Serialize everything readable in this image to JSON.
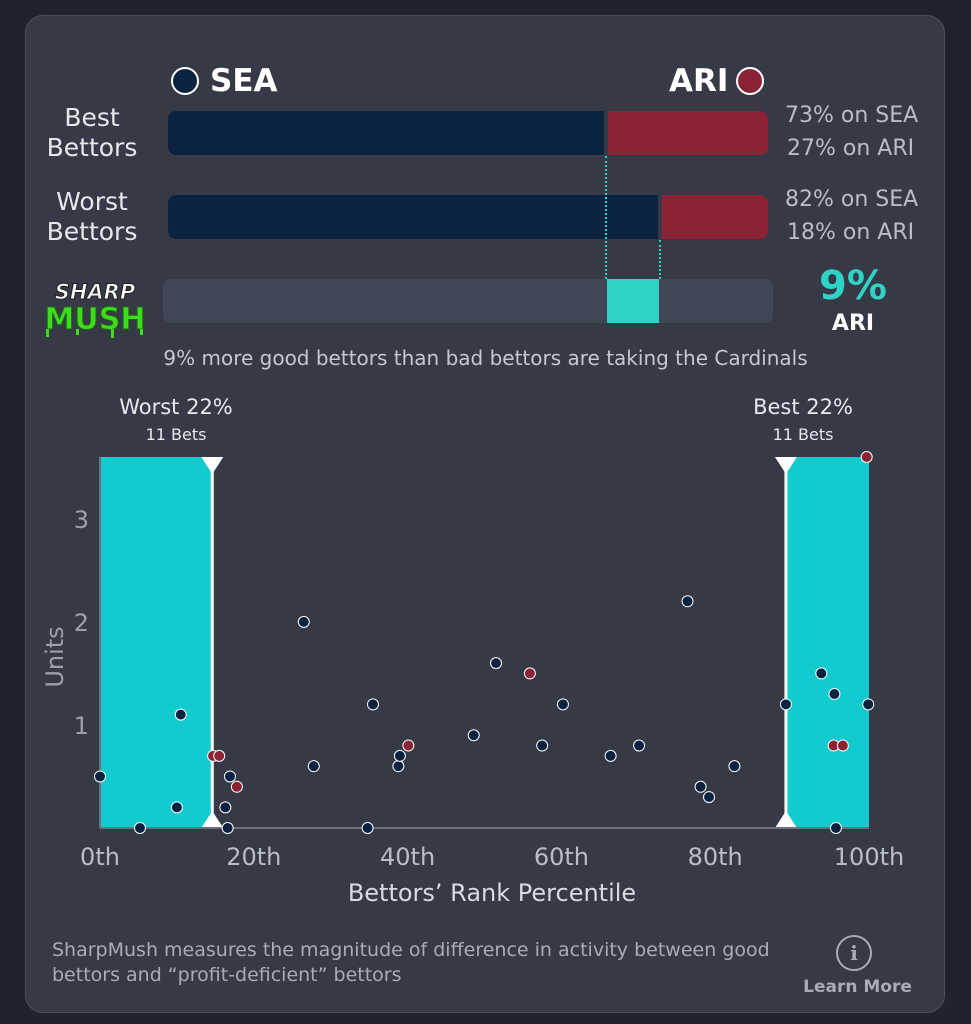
{
  "colors": {
    "sea": "#0b2340",
    "ari": "#8c2335",
    "accent": "#2fd3c6",
    "zone": "#12cbcf",
    "logo_green": "#3fdb1f"
  },
  "header": {
    "team_left": "SEA",
    "team_right": "ARI"
  },
  "rows": [
    {
      "label_line1": "Best",
      "label_line2": "Bettors",
      "sea_pct": 73,
      "ari_pct": 27,
      "text_sea": "73% on SEA",
      "text_ari": "27% on ARI"
    },
    {
      "label_line1": "Worst",
      "label_line2": "Bettors",
      "sea_pct": 82,
      "ari_pct": 18,
      "text_sea": "82% on SEA",
      "text_ari": "18% on ARI"
    }
  ],
  "sharpmush": {
    "logo_line1": "SHARP",
    "logo_line2": "MUSH",
    "delta_pct": 9,
    "delta_label": "9%",
    "delta_team": "ARI",
    "summary": "9% more good bettors than bad bettors are taking the Cardinals"
  },
  "chart_data": {
    "type": "scatter",
    "xlabel": "Bettors’ Rank Percentile",
    "ylabel": "Units",
    "xlim": [
      0,
      100
    ],
    "ylim": [
      0,
      3.6
    ],
    "x_ticks": [
      0,
      20,
      40,
      60,
      80,
      100
    ],
    "x_tick_labels": [
      "0th",
      "20th",
      "40th",
      "60th",
      "80th",
      "100th"
    ],
    "y_ticks": [
      1,
      2,
      3
    ],
    "y_tick_labels": [
      "1",
      "2",
      "3"
    ],
    "zones": [
      {
        "side": "left",
        "title": "Worst 22%",
        "sub": "11 Bets",
        "x_from": 0,
        "x_to": 14.6
      },
      {
        "side": "right",
        "title": "Best 22%",
        "sub": "11 Bets",
        "x_from": 89.2,
        "x_to": 100
      }
    ],
    "series": [
      {
        "team": "SEA",
        "points": [
          [
            0,
            0.5
          ],
          [
            5.2,
            0
          ],
          [
            10,
            0.2
          ],
          [
            10.5,
            1.1
          ],
          [
            16.3,
            0.2
          ],
          [
            16.6,
            0
          ],
          [
            16.9,
            0.5
          ],
          [
            26.5,
            2.0
          ],
          [
            27.8,
            0.6
          ],
          [
            34.8,
            0
          ],
          [
            35.5,
            1.2
          ],
          [
            38.8,
            0.6
          ],
          [
            39,
            0.7
          ],
          [
            48.6,
            0.9
          ],
          [
            51.5,
            1.6
          ],
          [
            57.5,
            0.8
          ],
          [
            60.2,
            1.2
          ],
          [
            66.4,
            0.7
          ],
          [
            70.1,
            0.8
          ],
          [
            76.4,
            2.2
          ],
          [
            78.1,
            0.4
          ],
          [
            79.2,
            0.3
          ],
          [
            82.5,
            0.6
          ],
          [
            89.2,
            1.2
          ],
          [
            93.8,
            1.5
          ],
          [
            95.5,
            1.3
          ],
          [
            95.7,
            0
          ],
          [
            99.9,
            1.2
          ]
        ]
      },
      {
        "team": "ARI",
        "points": [
          [
            14.7,
            0.7
          ],
          [
            15.5,
            0.7
          ],
          [
            17.8,
            0.4
          ],
          [
            40.1,
            0.8
          ],
          [
            55.9,
            1.5
          ],
          [
            95.4,
            0.8
          ],
          [
            96.6,
            0.8
          ],
          [
            99.7,
            3.6
          ]
        ]
      }
    ]
  },
  "footer": {
    "text": "SharpMush measures the magnitude of difference in activity between good bettors and “profit-deficient” bettors",
    "learn_more": "Learn More",
    "info_glyph": "i"
  }
}
